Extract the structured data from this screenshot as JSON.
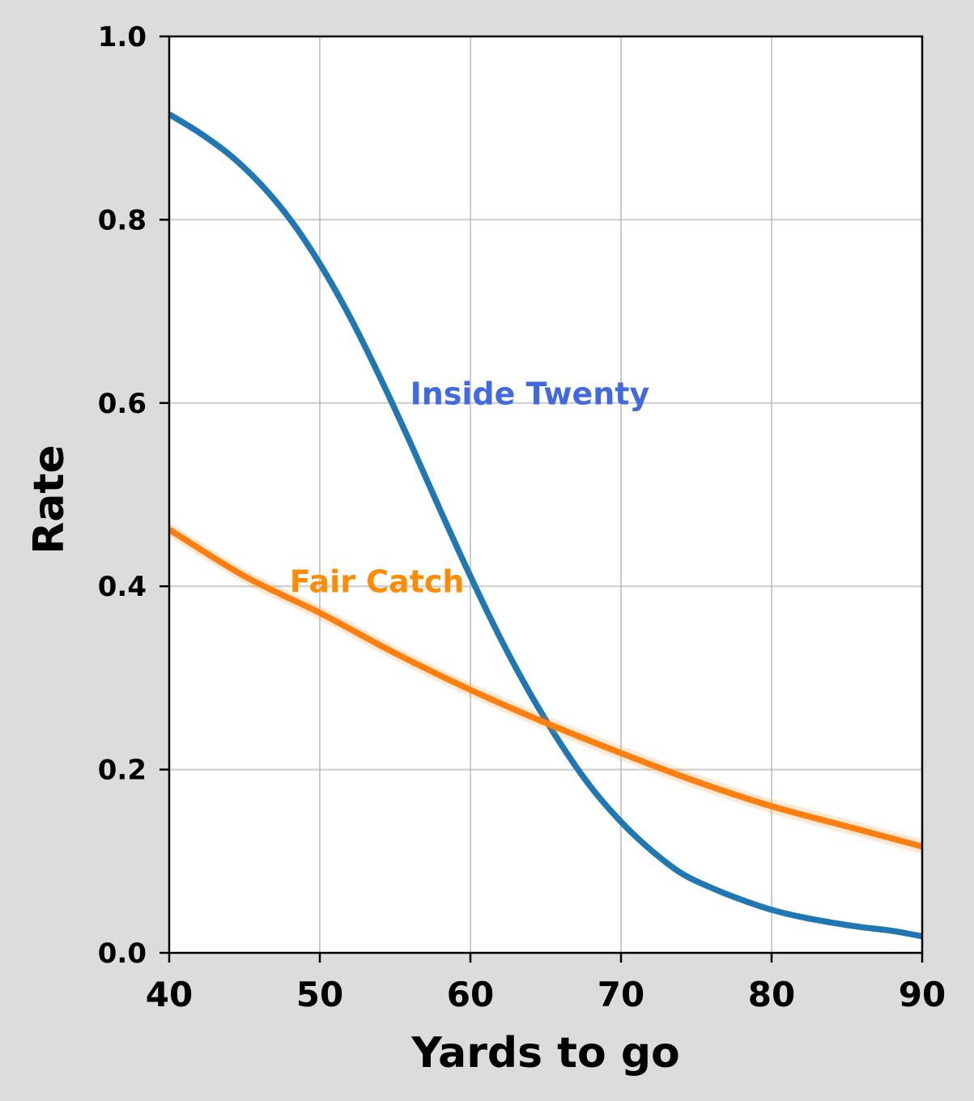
{
  "chart_data": {
    "type": "line",
    "xlabel": "Yards to go",
    "ylabel": "Rate",
    "xlim": [
      40,
      90
    ],
    "ylim": [
      0.0,
      1.0
    ],
    "xticks": [
      "40",
      "50",
      "60",
      "70",
      "80",
      "90"
    ],
    "yticks": [
      "0.0",
      "0.2",
      "0.4",
      "0.6",
      "0.8",
      "1.0"
    ],
    "grid": true,
    "series": [
      {
        "name": "Inside Twenty",
        "color": "#1f77b4",
        "label_color": "#4169e1",
        "band": false,
        "x": [
          40,
          42,
          44,
          46,
          48,
          50,
          52,
          54,
          56,
          58,
          60,
          62,
          64,
          66,
          68,
          70,
          72,
          74,
          76,
          78,
          80,
          82,
          84,
          86,
          88,
          90
        ],
        "y": [
          0.915,
          0.895,
          0.871,
          0.84,
          0.801,
          0.752,
          0.694,
          0.628,
          0.557,
          0.483,
          0.411,
          0.343,
          0.282,
          0.228,
          0.181,
          0.143,
          0.112,
          0.087,
          0.071,
          0.058,
          0.047,
          0.039,
          0.033,
          0.028,
          0.024,
          0.018
        ]
      },
      {
        "name": "Fair Catch",
        "color": "#ff7f0e",
        "label_color": "#ff8c00",
        "band": true,
        "x": [
          40,
          45,
          50,
          55,
          60,
          65,
          70,
          75,
          80,
          85,
          90
        ],
        "y": [
          0.462,
          0.411,
          0.371,
          0.327,
          0.287,
          0.251,
          0.218,
          0.187,
          0.16,
          0.138,
          0.116
        ]
      }
    ],
    "annotations": [
      {
        "text": "Inside Twenty",
        "x": 56.0,
        "y": 0.61,
        "color": "#4169e1"
      },
      {
        "text": "Fair Catch",
        "x": 48.0,
        "y": 0.405,
        "color": "#ff8c00"
      }
    ]
  }
}
